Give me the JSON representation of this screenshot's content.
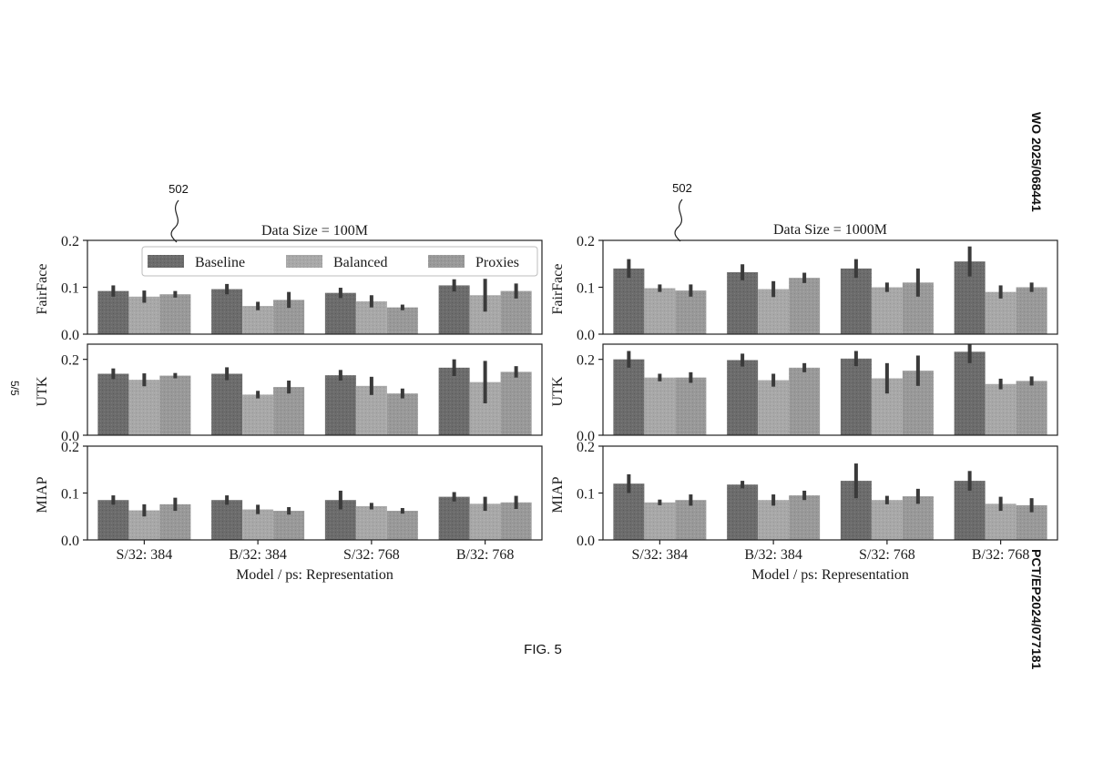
{
  "page": {
    "publication_number": "WO 2025/068441",
    "application_number": "PCT/EP2024/077181",
    "sheet_label": "5/5",
    "figure_caption": "FIG. 5",
    "reference_numeral_left": "502",
    "reference_numeral_right": "502"
  },
  "colors": {
    "Baseline": "#6c6c6c",
    "Balanced": "#a8a8a8",
    "Proxies": "#999999",
    "error_bar": "#3a3a3a",
    "axis": "#222222"
  },
  "legend": {
    "entries": [
      "Baseline",
      "Balanced",
      "Proxies"
    ],
    "placement": "top-right of first panel, spanning width"
  },
  "chart_data": [
    {
      "type": "bar",
      "title": "Data Size = 100M",
      "xlabel": "Model / ps: Representation",
      "categories": [
        "S/32: 384",
        "B/32: 384",
        "S/32: 768",
        "B/32: 768"
      ],
      "panels": [
        {
          "ylabel": "FairFace",
          "ylim": [
            0,
            0.2
          ],
          "yticks": [
            "0.0",
            "0.1",
            "0.2"
          ],
          "series": [
            {
              "name": "Baseline",
              "values": [
                0.092,
                0.096,
                0.088,
                0.104
              ],
              "err": [
                0.012,
                0.011,
                0.011,
                0.013
              ]
            },
            {
              "name": "Balanced",
              "values": [
                0.08,
                0.06,
                0.07,
                0.083
              ],
              "err": [
                0.013,
                0.009,
                0.013,
                0.035
              ]
            },
            {
              "name": "Proxies",
              "values": [
                0.085,
                0.073,
                0.057,
                0.092
              ],
              "err": [
                0.007,
                0.017,
                0.006,
                0.016
              ]
            }
          ]
        },
        {
          "ylabel": "UTK",
          "ylim": [
            0,
            0.24
          ],
          "yticks": [
            "0.0",
            "0.2"
          ],
          "series": [
            {
              "name": "Baseline",
              "values": [
                0.162,
                0.162,
                0.158,
                0.178
              ],
              "err": [
                0.014,
                0.017,
                0.014,
                0.022
              ]
            },
            {
              "name": "Balanced",
              "values": [
                0.146,
                0.107,
                0.13,
                0.14
              ],
              "err": [
                0.017,
                0.01,
                0.024,
                0.056
              ]
            },
            {
              "name": "Proxies",
              "values": [
                0.157,
                0.127,
                0.11,
                0.167
              ],
              "err": [
                0.007,
                0.017,
                0.013,
                0.015
              ]
            }
          ]
        },
        {
          "ylabel": "MIAP",
          "ylim": [
            0,
            0.2
          ],
          "yticks": [
            "0.0",
            "0.1",
            "0.2"
          ],
          "series": [
            {
              "name": "Baseline",
              "values": [
                0.085,
                0.085,
                0.085,
                0.092
              ],
              "err": [
                0.01,
                0.01,
                0.02,
                0.01
              ]
            },
            {
              "name": "Balanced",
              "values": [
                0.063,
                0.065,
                0.072,
                0.077
              ],
              "err": [
                0.013,
                0.01,
                0.007,
                0.015
              ]
            },
            {
              "name": "Proxies",
              "values": [
                0.076,
                0.062,
                0.062,
                0.08
              ],
              "err": [
                0.014,
                0.008,
                0.006,
                0.014
              ]
            }
          ]
        }
      ]
    },
    {
      "type": "bar",
      "title": "Data Size = 1000M",
      "xlabel": "Model / ps: Representation",
      "categories": [
        "S/32: 384",
        "B/32: 384",
        "S/32: 768",
        "B/32: 768"
      ],
      "panels": [
        {
          "ylabel": "FairFace",
          "ylim": [
            0,
            0.2
          ],
          "yticks": [
            "0.0",
            "0.1",
            "0.2"
          ],
          "series": [
            {
              "name": "Baseline",
              "values": [
                0.14,
                0.132,
                0.14,
                0.155
              ],
              "err": [
                0.02,
                0.017,
                0.02,
                0.032
              ]
            },
            {
              "name": "Balanced",
              "values": [
                0.098,
                0.096,
                0.1,
                0.09
              ],
              "err": [
                0.008,
                0.017,
                0.01,
                0.014
              ]
            },
            {
              "name": "Proxies",
              "values": [
                0.093,
                0.12,
                0.11,
                0.1
              ],
              "err": [
                0.013,
                0.011,
                0.03,
                0.01
              ]
            }
          ]
        },
        {
          "ylabel": "UTK",
          "ylim": [
            0,
            0.24
          ],
          "yticks": [
            "0.0",
            "0.2"
          ],
          "series": [
            {
              "name": "Baseline",
              "values": [
                0.2,
                0.198,
                0.202,
                0.22
              ],
              "err": [
                0.022,
                0.017,
                0.02,
                0.03
              ]
            },
            {
              "name": "Balanced",
              "values": [
                0.152,
                0.145,
                0.15,
                0.135
              ],
              "err": [
                0.01,
                0.017,
                0.04,
                0.014
              ]
            },
            {
              "name": "Proxies",
              "values": [
                0.152,
                0.178,
                0.17,
                0.143
              ],
              "err": [
                0.014,
                0.012,
                0.04,
                0.012
              ]
            }
          ]
        },
        {
          "ylabel": "MIAP",
          "ylim": [
            0,
            0.2
          ],
          "yticks": [
            "0.0",
            "0.1",
            "0.2"
          ],
          "series": [
            {
              "name": "Baseline",
              "values": [
                0.12,
                0.118,
                0.126,
                0.126
              ],
              "err": [
                0.02,
                0.008,
                0.037,
                0.021
              ]
            },
            {
              "name": "Balanced",
              "values": [
                0.08,
                0.085,
                0.085,
                0.077
              ],
              "err": [
                0.006,
                0.012,
                0.009,
                0.015
              ]
            },
            {
              "name": "Proxies",
              "values": [
                0.085,
                0.095,
                0.093,
                0.074
              ],
              "err": [
                0.012,
                0.01,
                0.016,
                0.015
              ]
            }
          ]
        }
      ]
    }
  ]
}
